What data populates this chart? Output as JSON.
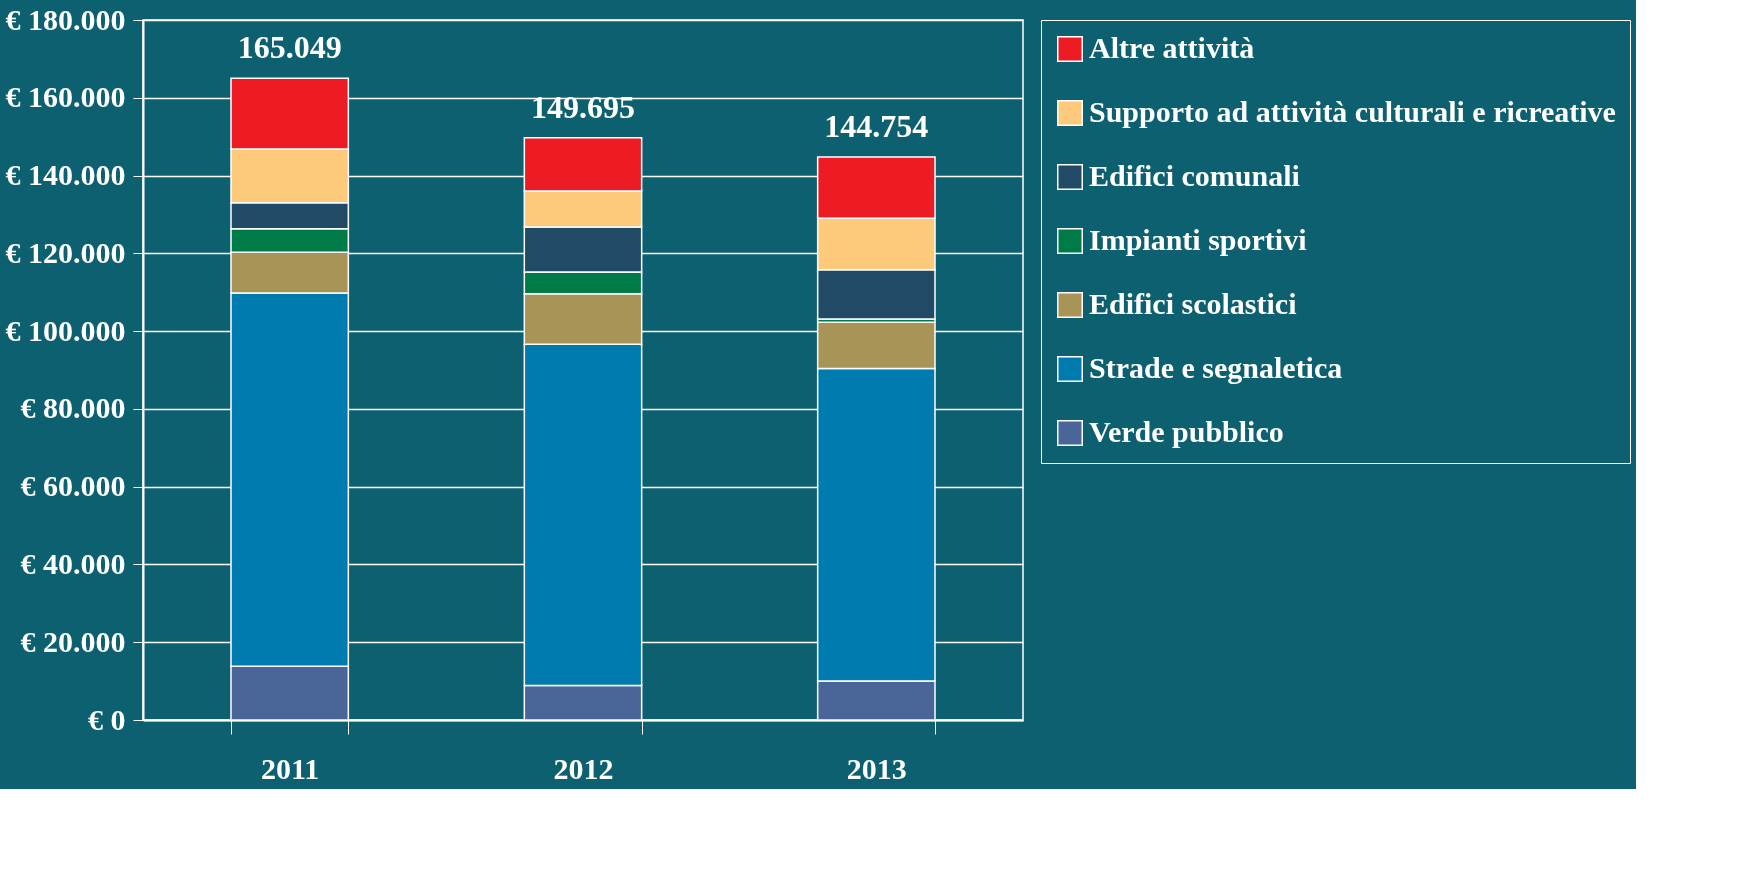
{
  "chart_data": {
    "type": "bar",
    "stacked": true,
    "categories": [
      "2011",
      "2012",
      "2013"
    ],
    "series": [
      {
        "name": "Verde pubblico",
        "color": "#4a6699",
        "values": [
          13800,
          8900,
          10000
        ]
      },
      {
        "name": "Strade e segnaletica",
        "color": "#007bb0",
        "values": [
          96000,
          87700,
          80400
        ]
      },
      {
        "name": "Edifici scolastici",
        "color": "#a89456",
        "values": [
          10500,
          13000,
          11900
        ]
      },
      {
        "name": "Impianti sportivi",
        "color": "#007a47",
        "values": [
          6000,
          5600,
          800
        ]
      },
      {
        "name": "Edifici comunali",
        "color": "#214a66",
        "values": [
          6700,
          11600,
          12700
        ]
      },
      {
        "name": "Supporto ad attività culturali e ricreative",
        "color": "#fdc97a",
        "values": [
          13800,
          9200,
          13200
        ]
      },
      {
        "name": "Altre attività",
        "color": "#ed1c24",
        "values": [
          18249,
          13695,
          15754
        ]
      }
    ],
    "totals": [
      "165.049",
      "149.695",
      "144.754"
    ],
    "ylim": [
      0,
      180000
    ],
    "yticks": [
      {
        "value": 0,
        "label": "€ 0"
      },
      {
        "value": 20000,
        "label": "€ 20.000"
      },
      {
        "value": 40000,
        "label": "€ 40.000"
      },
      {
        "value": 60000,
        "label": "€ 60.000"
      },
      {
        "value": 80000,
        "label": "€ 80.000"
      },
      {
        "value": 100000,
        "label": "€ 100.000"
      },
      {
        "value": 120000,
        "label": "€ 120.000"
      },
      {
        "value": 140000,
        "label": "€ 140.000"
      },
      {
        "value": 160000,
        "label": "€ 160.000"
      },
      {
        "value": 180000,
        "label": "€ 180.000"
      }
    ],
    "grid": "y",
    "legend": "right"
  }
}
